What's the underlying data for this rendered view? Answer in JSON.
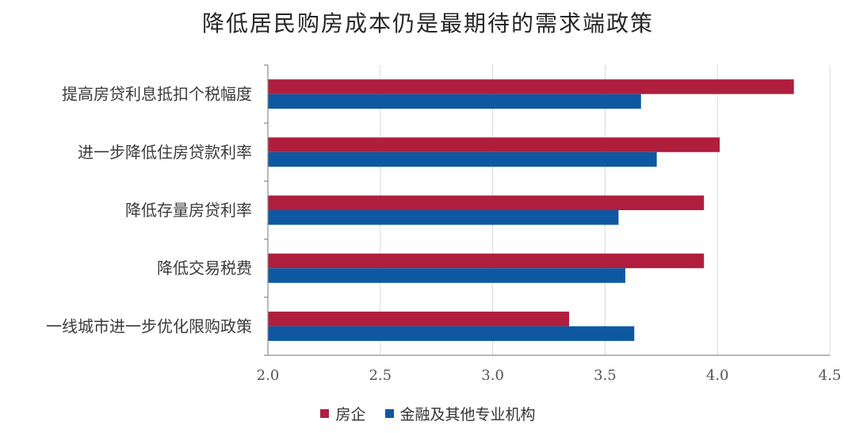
{
  "chart_data": {
    "type": "bar",
    "orientation": "horizontal",
    "title": "降低居民购房成本仍是最期待的需求端政策",
    "categories": [
      "提高房贷利息抵扣个税幅度",
      "进一步降低住房贷款利率",
      "降低存量房贷利率",
      "降低交易税费",
      "一线城市进一步优化限购政策"
    ],
    "series": [
      {
        "name": "房企",
        "color": "#B01E3E",
        "values": [
          4.34,
          4.01,
          3.94,
          3.94,
          3.34
        ]
      },
      {
        "name": "金融及其他专业机构",
        "color": "#0E58A2",
        "values": [
          3.66,
          3.73,
          3.56,
          3.59,
          3.63
        ]
      }
    ],
    "xlim": [
      2.0,
      4.5
    ],
    "xticks": [
      "2.0",
      "2.5",
      "3.0",
      "3.5",
      "4.0",
      "4.5"
    ],
    "grid": "vertical",
    "legend": "bottom"
  }
}
